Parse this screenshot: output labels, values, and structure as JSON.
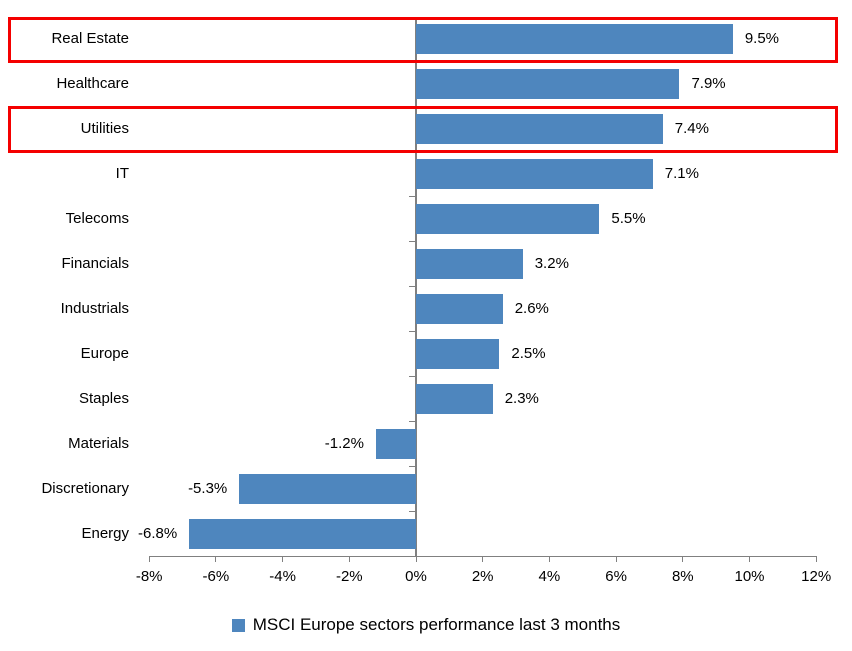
{
  "chart_data": {
    "type": "bar",
    "orientation": "horizontal",
    "title": "",
    "xlabel": "",
    "ylabel": "",
    "categories": [
      "Real Estate",
      "Healthcare",
      "Utilities",
      "IT",
      "Telecoms",
      "Financials",
      "Industrials",
      "Europe",
      "Staples",
      "Materials",
      "Discretionary",
      "Energy"
    ],
    "values": [
      9.5,
      7.9,
      7.4,
      7.1,
      5.5,
      3.2,
      2.6,
      2.5,
      2.3,
      -1.2,
      -5.3,
      -6.8
    ],
    "value_labels": [
      "9.5%",
      "7.9%",
      "7.4%",
      "7.1%",
      "5.5%",
      "3.2%",
      "2.6%",
      "2.5%",
      "2.3%",
      "-1.2%",
      "-5.3%",
      "-6.8%"
    ],
    "xlim": [
      -8,
      12
    ],
    "x_ticks": [
      -8,
      -6,
      -4,
      -2,
      0,
      2,
      4,
      6,
      8,
      10,
      12
    ],
    "x_tick_labels": [
      "-8%",
      "-6%",
      "-4%",
      "-2%",
      "0%",
      "2%",
      "4%",
      "6%",
      "8%",
      "10%",
      "12%"
    ],
    "grid": false,
    "legend_position": "bottom",
    "legend": [
      "MSCI Europe sectors performance last 3 months"
    ],
    "bar_color": "#4E86BE",
    "axis_color": "#808080",
    "highlight_color": "#F40000",
    "highlighted_categories": [
      "Real Estate",
      "Utilities"
    ]
  }
}
